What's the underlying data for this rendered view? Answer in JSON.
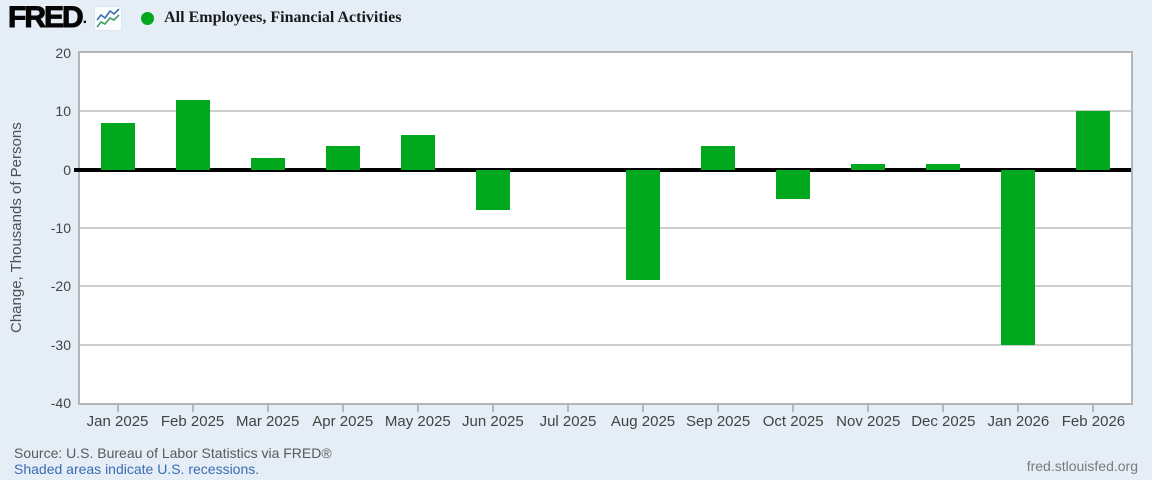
{
  "header": {
    "logo_text": "FRED",
    "logo_mark": ".",
    "legend_label": "All Employees, Financial Activities"
  },
  "chart_data": {
    "type": "bar",
    "title": "All Employees, Financial Activities",
    "categories": [
      "Jan 2025",
      "Feb 2025",
      "Mar 2025",
      "Apr 2025",
      "May 2025",
      "Jun 2025",
      "Jul 2025",
      "Aug 2025",
      "Sep 2025",
      "Oct 2025",
      "Nov 2025",
      "Dec 2025",
      "Jan 2026",
      "Feb 2026"
    ],
    "values": [
      8,
      12,
      2,
      4,
      6,
      -7,
      0,
      -19,
      4,
      -5,
      1,
      1,
      -30,
      10
    ],
    "xlabel": "",
    "ylabel": "Change, Thousands of Persons",
    "ylim": [
      -40,
      20
    ],
    "yticks": [
      20,
      10,
      0,
      -10,
      -20,
      -30,
      -40
    ],
    "grid": "horizontal",
    "zero_line": true,
    "legend_position": "top-left",
    "bar_color": "#00a81e",
    "background_color": "#e5eef7"
  },
  "footer": {
    "source": "Source: U.S. Bureau of Labor Statistics via FRED®",
    "recession_note": "Shaded areas indicate U.S. recessions.",
    "site": "fred.stlouisfed.org"
  },
  "icons": {
    "logo_sparkline": "fred-sparkline-icon",
    "legend_dot": "series-marker-dot"
  }
}
